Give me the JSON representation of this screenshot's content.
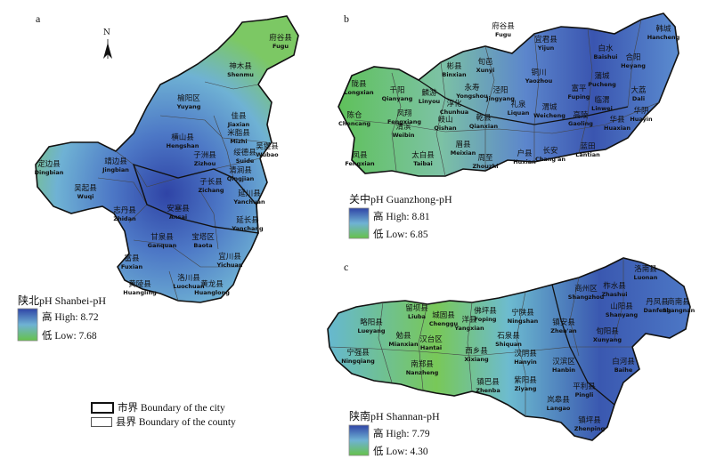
{
  "panels": {
    "a": {
      "letter": "a",
      "title": "陕北pH Shanbei-pH",
      "high": "高 High: 8.72",
      "low": "低 Low: 7.68",
      "high_color": "#2f4ba8",
      "low_color": "#66c24a",
      "labels": [
        {
          "cn": "府谷县",
          "en": "Fugu"
        },
        {
          "cn": "神木县",
          "en": "Shenmu"
        },
        {
          "cn": "榆阳区",
          "en": "Yuyang"
        },
        {
          "cn": "佳县",
          "en": "Jiaxian"
        },
        {
          "cn": "米脂县",
          "en": "Mizhi"
        },
        {
          "cn": "吴堡县",
          "en": "Wubao"
        },
        {
          "cn": "横山县",
          "en": "Hengshan"
        },
        {
          "cn": "绥德县",
          "en": "Suide"
        },
        {
          "cn": "子洲县",
          "en": "Zizhou"
        },
        {
          "cn": "清涧县",
          "en": "Qingjian"
        },
        {
          "cn": "定边县",
          "en": "Dingbian"
        },
        {
          "cn": "靖边县",
          "en": "Jingbian"
        },
        {
          "cn": "子长县",
          "en": "Zichang"
        },
        {
          "cn": "延川县",
          "en": "Yanchuan"
        },
        {
          "cn": "吴起县",
          "en": "Wuqi"
        },
        {
          "cn": "志丹县",
          "en": "Zhidan"
        },
        {
          "cn": "安塞县",
          "en": "Ansai"
        },
        {
          "cn": "延长县",
          "en": "Yanchang"
        },
        {
          "cn": "甘泉县",
          "en": "Ganquan"
        },
        {
          "cn": "宝塔区",
          "en": "Baota"
        },
        {
          "cn": "富县",
          "en": "Fuxian"
        },
        {
          "cn": "宜川县",
          "en": "Yichuan"
        },
        {
          "cn": "洛川县",
          "en": "Luochuan"
        },
        {
          "cn": "黄陵县",
          "en": "Huangling"
        },
        {
          "cn": "黄龙县",
          "en": "Huanglong"
        }
      ]
    },
    "b": {
      "letter": "b",
      "title": "关中pH Guanzhong-pH",
      "high": "高 High: 8.81",
      "low": "低 Low: 6.85",
      "high_color": "#2f4ba8",
      "low_color": "#66c24a",
      "labels": [
        {
          "cn": "韩城",
          "en": "Hancheng"
        },
        {
          "cn": "宜君县",
          "en": "Yijun"
        },
        {
          "cn": "白水",
          "en": "Baishui"
        },
        {
          "cn": "合阳",
          "en": "Heyang"
        },
        {
          "cn": "府谷县",
          "en": "Fugu"
        },
        {
          "cn": "彬县",
          "en": "Binxian"
        },
        {
          "cn": "旬邑",
          "en": "Xunyi"
        },
        {
          "cn": "铜川",
          "en": "Yaozhou"
        },
        {
          "cn": "陇县",
          "en": "Longxian"
        },
        {
          "cn": "千阳",
          "en": "Qianyang"
        },
        {
          "cn": "麟游",
          "en": "Linyou"
        },
        {
          "cn": "永寿",
          "en": "Yongshou"
        },
        {
          "cn": "淳化",
          "en": "Chunhua"
        },
        {
          "cn": "泾阳",
          "en": "Jingyang"
        },
        {
          "cn": "富平",
          "en": "Fuping"
        },
        {
          "cn": "蒲城",
          "en": "Pucheng"
        },
        {
          "cn": "大荔",
          "en": "Dali"
        },
        {
          "cn": "凤翔",
          "en": "Fengxiang"
        },
        {
          "cn": "岐山",
          "en": "Qishan"
        },
        {
          "cn": "乾县",
          "en": "Qianxian"
        },
        {
          "cn": "礼泉",
          "en": "Liquan"
        },
        {
          "cn": "渭城",
          "en": "Weicheng"
        },
        {
          "cn": "临渭",
          "en": "Linwei"
        },
        {
          "cn": "华阴",
          "en": "Huayin"
        },
        {
          "cn": "陈仓",
          "en": "Chencang"
        },
        {
          "cn": "渭滨",
          "en": "Weibin"
        },
        {
          "cn": "高陵",
          "en": "Gaoling"
        },
        {
          "cn": "华县",
          "en": "Huaxian"
        },
        {
          "cn": "凤县",
          "en": "Fengxian"
        },
        {
          "cn": "太白县",
          "en": "Taibai"
        },
        {
          "cn": "眉县",
          "en": "Meixian"
        },
        {
          "cn": "周至",
          "en": "Zhouzhi"
        },
        {
          "cn": "户县",
          "en": "Huxian"
        },
        {
          "cn": "长安",
          "en": "Chang'an"
        },
        {
          "cn": "蓝田",
          "en": "Lantian"
        }
      ]
    },
    "c": {
      "letter": "c",
      "title": "陕南pH Shannan-pH",
      "high": "高 High: 7.79",
      "low": "低 Low: 4.30",
      "high_color": "#2f4ba8",
      "low_color": "#7ccc3e",
      "labels": [
        {
          "cn": "洛南县",
          "en": "Luonan"
        },
        {
          "cn": "商州区",
          "en": "Shangzhou"
        },
        {
          "cn": "丹凤县",
          "en": "Danfeng"
        },
        {
          "cn": "柞水县",
          "en": "Zhashui"
        },
        {
          "cn": "山阳县",
          "en": "Shanyang"
        },
        {
          "cn": "商南县",
          "en": "Shangnan"
        },
        {
          "cn": "略阳县",
          "en": "Lueyang"
        },
        {
          "cn": "留坝县",
          "en": "Liuba"
        },
        {
          "cn": "佛坪县",
          "en": "Foping"
        },
        {
          "cn": "宁陕县",
          "en": "Ningshan"
        },
        {
          "cn": "镇安县",
          "en": "Zhen'an"
        },
        {
          "cn": "城固县",
          "en": "Chenggu"
        },
        {
          "cn": "洋县",
          "en": "Yangxian"
        },
        {
          "cn": "勉县",
          "en": "Mianxian"
        },
        {
          "cn": "汉台区",
          "en": "Hantai"
        },
        {
          "cn": "石泉县",
          "en": "Shiquan"
        },
        {
          "cn": "旬阳县",
          "en": "Xunyang"
        },
        {
          "cn": "宁强县",
          "en": "Ningqiang"
        },
        {
          "cn": "西乡县",
          "en": "Xixiang"
        },
        {
          "cn": "汉阴县",
          "en": "Hanyin"
        },
        {
          "cn": "汉滨区",
          "en": "Hanbin"
        },
        {
          "cn": "白河县",
          "en": "Baihe"
        },
        {
          "cn": "南郑县",
          "en": "Nanzheng"
        },
        {
          "cn": "镇巴县",
          "en": "Zhenba"
        },
        {
          "cn": "紫阳县",
          "en": "Ziyang"
        },
        {
          "cn": "岚皋县",
          "en": "Langao"
        },
        {
          "cn": "平利县",
          "en": "Pingli"
        },
        {
          "cn": "镇坪县",
          "en": "Zhenping"
        }
      ]
    }
  },
  "boundary_legend": {
    "city": "市界 Boundary of the city",
    "county": "县界 Boundary of the county"
  },
  "north_label": "N"
}
